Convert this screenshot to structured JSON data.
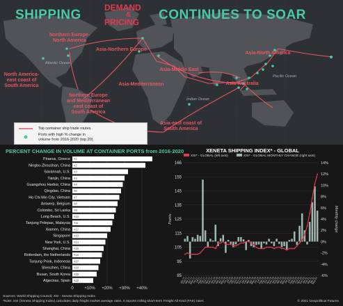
{
  "title": {
    "left": "SHIPPING",
    "demand": "DEMAND",
    "amp": "&",
    "pricing": "PRICING",
    "right": "CONTINUES TO SOAR"
  },
  "map": {
    "routes": [
      {
        "label": "Northern Europe-\nNorth America"
      },
      {
        "label": "Asia-Northern Europe"
      },
      {
        "label": "Asia-North America"
      },
      {
        "label": "North America-\neast coast of\nSouth America"
      },
      {
        "label": "Asia-Middle East"
      },
      {
        "label": "Asia-Mediterranean"
      },
      {
        "label": "Asia-Australia"
      },
      {
        "label": "Northern Europe\nand Mediterranean\neast coast of\nSouth America"
      },
      {
        "label": "Asia-east coast of\nSouth America"
      }
    ],
    "oceans": [
      "Atlantic Ocean",
      "Indian Ocean",
      "Pacific Ocean"
    ],
    "legend": {
      "routes": "Top container ship trade routes",
      "ports": "Ports with high % change in\nvolume from 2016-2020 (top 20)"
    },
    "colors": {
      "route": "#e8555f",
      "port": "#49c9a8",
      "land": "#505459",
      "ocean": "#2d3035"
    }
  },
  "chart_data": [
    {
      "type": "bar",
      "title": "PERCENT CHANGE IN VOLUME AT CONTAINER PORTS from 2016-2020",
      "categories": [
        "Piraeus, Greece",
        "Ningbo-Zhoushan, China",
        "Savannah, U.S.",
        "Tianjin, China",
        "Guangzhou Harbor, China",
        "Qingdao, China",
        "Ho Chi Min City, Vietnam",
        "Antwerp, Belgium",
        "Colombo, Sri Lanka",
        "Long Beach, U.S.",
        "Tanjung Pelepas, Malaysia",
        "Xiamen, China",
        "Singapore",
        "New York, U.S.",
        "Shanghai, China",
        "Rotterdam, the Netherlands",
        "Tanjung Priok, Indonesia",
        "Shenzhen, China",
        "Busan, South Korea",
        "Algeciras, Spain"
      ],
      "ranks": [
        "#1",
        "#2",
        "#3",
        "#4",
        "#5",
        "#6",
        "#7",
        "#8",
        "#9",
        "#10",
        "#11",
        "#12",
        "#13",
        "#14",
        "#15",
        "#16",
        "#17",
        "#18",
        "#19",
        "#20"
      ],
      "values": [
        46,
        42,
        32,
        30,
        29,
        28,
        27,
        26,
        25,
        24,
        23,
        22,
        20,
        19,
        18,
        17,
        16,
        15,
        14,
        12
      ],
      "xticks": [
        "0",
        "+10%",
        "+20%",
        "+30%",
        "+40%"
      ],
      "xlim": [
        0,
        48
      ],
      "bar_color": "#ffffff"
    },
    {
      "type": "line",
      "title": "XENETA SHIPPING INDEX* - GLOBAL",
      "legend": [
        "XSI* - GLOBAL (left axis)",
        "XSI* - GLOBAL MONTHLY CHANGE (right axis)"
      ],
      "ylabel": "Points",
      "y2label": "Monthly change",
      "yticks": [
        "85",
        "95",
        "105",
        "115",
        "125",
        "135",
        "145",
        "155",
        "165"
      ],
      "y2ticks": [
        "-6%",
        "-4%",
        "-2%",
        "0%",
        "2%",
        "4%",
        "6%",
        "8%",
        "10%",
        "12%",
        "14%"
      ],
      "ylim": [
        85,
        165
      ],
      "y2lim": [
        -6,
        14
      ],
      "x": [
        "Jan-17",
        "Feb-17",
        "Mar-17",
        "Apr-17",
        "May-17",
        "Jun-17",
        "Jul-17",
        "Aug-17",
        "Sep-17",
        "Oct-17",
        "Nov-17",
        "Dec-17",
        "Jan-18",
        "Feb-18",
        "Mar-18",
        "Apr-18",
        "May-18",
        "Jun-18",
        "Jul-18",
        "Aug-18",
        "Sep-18",
        "Oct-18",
        "Nov-18",
        "Dec-18",
        "Jan-19",
        "Feb-19",
        "Mar-19",
        "Apr-19",
        "May-19",
        "Jun-19",
        "Jul-19",
        "Aug-19",
        "Sep-19",
        "Oct-19",
        "Nov-19",
        "Dec-19",
        "Jan-20",
        "Feb-20",
        "Mar-20",
        "Apr-20",
        "May-20",
        "Jun-20",
        "Jul-20",
        "Aug-20",
        "Sep-20",
        "Oct-20",
        "Nov-20",
        "Dec-20",
        "Jan-21",
        "Feb-21",
        "Mar-21",
        "Apr-21",
        "May-21"
      ],
      "series": [
        {
          "name": "XSI* - GLOBAL (left axis)",
          "type": "line",
          "color": "#e23a4d",
          "values": [
            100,
            101,
            100,
            100,
            100,
            100,
            101,
            103,
            105,
            105,
            105,
            105,
            104,
            108,
            108,
            109,
            107,
            107,
            107,
            106,
            106,
            107,
            108,
            108,
            109,
            109,
            108,
            107,
            105,
            104,
            104,
            104,
            105,
            105,
            105,
            104,
            105,
            105,
            104,
            104,
            103,
            104,
            104,
            104,
            106,
            108,
            110,
            114,
            120,
            129,
            140,
            150,
            157
          ]
        },
        {
          "name": "XSI* - GLOBAL MONTHLY CHANGE (right axis)",
          "type": "bar",
          "color": "#9fb5ad",
          "values": [
            0.5,
            1.0,
            -3.0,
            0.8,
            0.5,
            1.2,
            1.0,
            11.0,
            2.0,
            -1.0,
            0.5,
            0.2,
            3.0,
            -0.8,
            0.6,
            1.2,
            -2.0,
            0.3,
            -0.4,
            -1.0,
            -0.5,
            0.8,
            0.8,
            0.4,
            -1.5,
            0.3,
            -0.8,
            -1.0,
            -0.6,
            -0.5,
            -1.2,
            -0.3,
            -0.5,
            0.5,
            -0.3,
            -0.8,
            0.5,
            -0.4,
            -1.0,
            -0.8,
            -1.5,
            0.3,
            0.5,
            1.8,
            -0.6,
            2.8,
            5.0,
            2.0,
            -0.5,
            3.5,
            7.0,
            9.8,
            5.5
          ]
        }
      ]
    }
  ],
  "footer": {
    "sources": "Sources: World Shipping Council, XSI - Xeneta Shipping Index",
    "note": "*Note: XSI (Xeneta Shipping Index) calculates daily freight market average rates. It reports rolling short-term Freight All Kind (FAK) rates.",
    "copyright": "© 2021 Geopolitical Futures"
  }
}
